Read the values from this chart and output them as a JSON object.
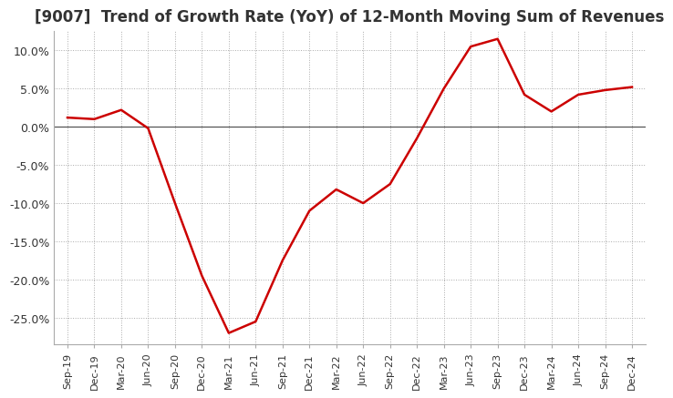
{
  "title": "[9007]  Trend of Growth Rate (YoY) of 12-Month Moving Sum of Revenues",
  "title_fontsize": 12,
  "line_color": "#cc0000",
  "background_color": "#ffffff",
  "plot_background": "#ffffff",
  "grid_color": "#aaaaaa",
  "ylim": [
    -0.285,
    0.125
  ],
  "yticks": [
    0.1,
    0.05,
    0.0,
    -0.05,
    -0.1,
    -0.15,
    -0.2,
    -0.25
  ],
  "ytick_labels": [
    "10.0%",
    "5.0%",
    "0.0%",
    "-5.0%",
    "-10.0%",
    "-15.0%",
    "-20.0%",
    "-25.0%"
  ],
  "dates": [
    "Sep-19",
    "Dec-19",
    "Mar-20",
    "Jun-20",
    "Sep-20",
    "Dec-20",
    "Mar-21",
    "Jun-21",
    "Sep-21",
    "Dec-21",
    "Mar-22",
    "Jun-22",
    "Sep-22",
    "Dec-22",
    "Mar-23",
    "Jun-23",
    "Sep-23",
    "Dec-23",
    "Mar-24",
    "Jun-24",
    "Sep-24",
    "Dec-24"
  ],
  "values": [
    0.012,
    0.01,
    0.022,
    -0.002,
    -0.1,
    -0.195,
    -0.27,
    -0.255,
    -0.175,
    -0.11,
    -0.082,
    -0.1,
    -0.075,
    -0.015,
    0.05,
    0.105,
    0.115,
    0.042,
    0.02,
    0.042,
    0.048,
    0.052
  ]
}
